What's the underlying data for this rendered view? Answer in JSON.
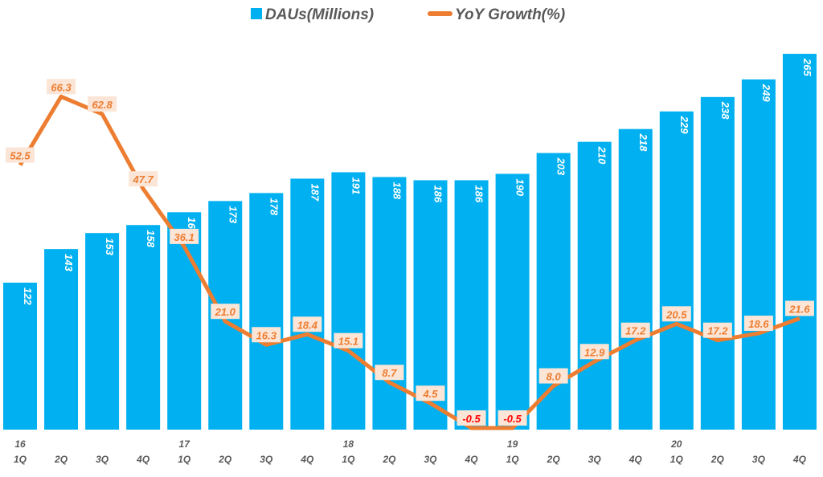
{
  "chart_data": {
    "type": "bar+line",
    "legend_position": "top",
    "grid": false,
    "categories": [
      "1Q",
      "2Q",
      "3Q",
      "4Q",
      "1Q",
      "2Q",
      "3Q",
      "4Q",
      "1Q",
      "2Q",
      "3Q",
      "4Q",
      "1Q",
      "2Q",
      "3Q",
      "4Q",
      "1Q",
      "2Q",
      "3Q",
      "4Q"
    ],
    "year_labels": [
      "16",
      "",
      "",
      "",
      "17",
      "",
      "",
      "",
      "18",
      "",
      "",
      "",
      "19",
      "",
      "",
      "",
      "20",
      "",
      "",
      ""
    ],
    "series": [
      {
        "name": "DAUs(Millions)",
        "type": "bar",
        "color": "#00B0F0",
        "values": [
          122,
          143,
          153,
          158,
          166,
          173,
          178,
          187,
          191,
          188,
          186,
          186,
          190,
          203,
          210,
          218,
          229,
          238,
          249,
          265
        ]
      },
      {
        "name": "YoY Growth(%)",
        "type": "line",
        "color": "#ED7D31",
        "values": [
          52.5,
          66.3,
          62.8,
          47.7,
          36.1,
          21.0,
          16.3,
          18.4,
          15.1,
          8.7,
          4.5,
          -0.5,
          -0.5,
          8.0,
          12.9,
          17.2,
          20.5,
          17.2,
          18.6,
          21.6
        ]
      }
    ]
  }
}
